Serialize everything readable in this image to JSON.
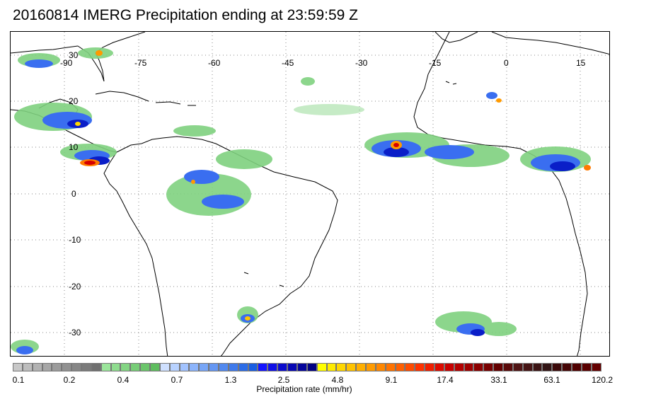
{
  "title": "20160814 IMERG Precipitation ending at 23:59:59 Z",
  "map": {
    "longitude_labels": [
      "-90",
      "-75",
      "-60",
      "-45",
      "-30",
      "-15",
      "0",
      "15"
    ],
    "latitude_labels": [
      "30",
      "20",
      "10",
      "0",
      "-10",
      "-20",
      "-30"
    ],
    "colors": {
      "land_outline": "#000000",
      "grid": "#888888",
      "light_rain": "#6fcf7a",
      "moderate_rain": "#3a6ef0",
      "heavy_rain": "#0a1ec8",
      "intense_rain": "#ff7a00",
      "extreme_rain": "#d40000"
    }
  },
  "colorbar": {
    "tick_labels": [
      "0.1",
      "0.2",
      "0.4",
      "0.7",
      "1.3",
      "2.5",
      "4.8",
      "9.1",
      "17.4",
      "33.1",
      "63.1",
      "120.2"
    ],
    "label": "Precipitation rate (mm/hr)",
    "colors": [
      "#c8c8c8",
      "#bdbdbd",
      "#b2b2b2",
      "#a7a7a7",
      "#9c9c9c",
      "#919191",
      "#868686",
      "#7b7b7b",
      "#707070",
      "#9be59b",
      "#8fdd8f",
      "#83d583",
      "#77cd77",
      "#6bc56b",
      "#5fbd5f",
      "#cfe0ff",
      "#b8d2ff",
      "#a2c3ff",
      "#8cb4fb",
      "#78a6f7",
      "#6597f3",
      "#5289ef",
      "#3f7aeb",
      "#2c6ce7",
      "#1a5ee3",
      "#1414ff",
      "#1010e6",
      "#0c0ccd",
      "#0808b4",
      "#05059b",
      "#030382",
      "#ffff00",
      "#ffeb00",
      "#ffd700",
      "#ffc300",
      "#ffaf00",
      "#ff9b00",
      "#ff8700",
      "#ff7300",
      "#ff5f00",
      "#ff4b00",
      "#ff3200",
      "#f01e00",
      "#dc0a00",
      "#c80000",
      "#b40000",
      "#a00000",
      "#8c0000",
      "#780000",
      "#640000",
      "#5a0a0a",
      "#501414",
      "#461414",
      "#3c1414",
      "#321414",
      "#3c0a0a",
      "#460505",
      "#500000",
      "#5a0000",
      "#640000"
    ]
  }
}
